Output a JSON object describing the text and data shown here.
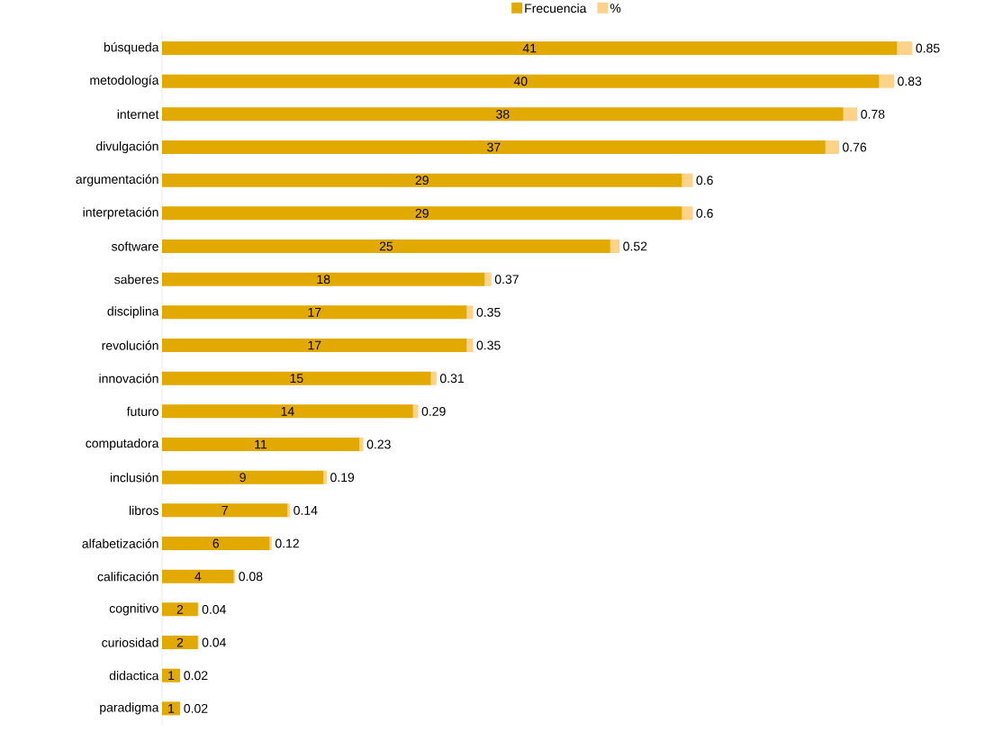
{
  "chart_data": {
    "type": "bar",
    "orientation": "horizontal",
    "stacked": true,
    "data_labels": true,
    "legend": "top",
    "tick_labels": "y",
    "categories": [
      "búsqueda",
      "metodología",
      "internet",
      "divulgación",
      "argumentación",
      "interpretación",
      "software",
      "saberes",
      "disciplina",
      "revolución",
      "innovación",
      "futuro",
      "computadora",
      "inclusión",
      "libros",
      "alfabetización",
      "calificación",
      "cognitivo",
      "curiosidad",
      "didactica",
      "paradigma"
    ],
    "series": [
      {
        "name": "Frecuencia",
        "color": "#e2a900",
        "values": [
          41,
          40,
          38,
          37,
          29,
          29,
          25,
          18,
          17,
          17,
          15,
          14,
          11,
          9,
          7,
          6,
          4,
          2,
          2,
          1,
          1
        ]
      },
      {
        "name": "%",
        "color": "#fdd38a",
        "values": [
          0.85,
          0.83,
          0.78,
          0.76,
          0.6,
          0.6,
          0.52,
          0.37,
          0.35,
          0.35,
          0.31,
          0.29,
          0.23,
          0.19,
          0.14,
          0.12,
          0.08,
          0.04,
          0.04,
          0.02,
          0.02
        ]
      }
    ]
  }
}
